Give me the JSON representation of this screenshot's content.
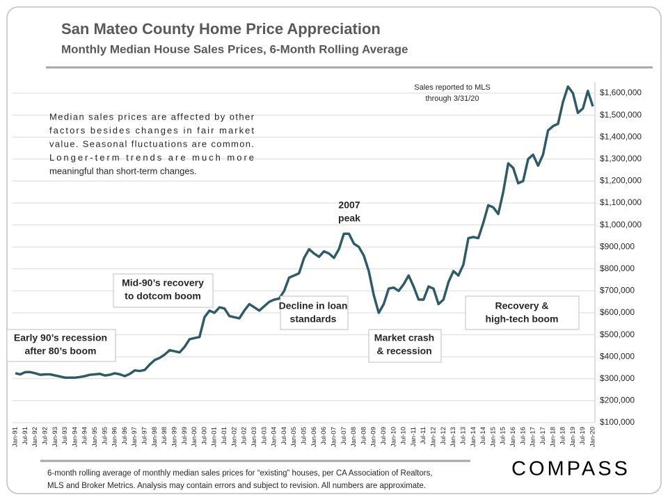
{
  "chart_data": {
    "type": "line",
    "title": "San Mateo County Home Price Appreciation",
    "subtitle": "Monthly Median House Sales Prices, 6-Month Rolling Average",
    "categories": [
      "Jan-91",
      null,
      "Jul-91",
      null,
      "Jan-92",
      null,
      "Jul-92",
      null,
      "Jan-93",
      null,
      "Jul-93",
      null,
      "Jan-94",
      null,
      "Jul-94",
      null,
      "Jan-95",
      null,
      "Jul-95",
      null,
      "Jan-96",
      null,
      "Jul-96",
      null,
      "Jan-97",
      null,
      "Jul-97",
      null,
      "Jan-98",
      null,
      "Jul-98",
      null,
      "Jan-99",
      null,
      "Jul-99",
      null,
      "Jan-00",
      null,
      "Jul-00",
      null,
      "Jan-01",
      null,
      "Jul-01",
      null,
      "Jan-02",
      null,
      "Jul-02",
      null,
      "Jan-03",
      null,
      "Jul-03",
      null,
      "Jan-04",
      null,
      "Jul-04",
      null,
      "Jan-05",
      null,
      "Jul-05",
      null,
      "Jan-06",
      null,
      "Jul-06",
      null,
      "Jan-07",
      null,
      "Jul-07",
      null,
      "Jan-08",
      null,
      "Jul-08",
      null,
      "Jan-09",
      null,
      "Jul-09",
      null,
      "Jan-10",
      null,
      "Jul-10",
      null,
      "Jan-11",
      null,
      "Jul-11",
      null,
      "Jan-12",
      null,
      "Jul-12",
      null,
      "Jan-13",
      null,
      "Jul-13",
      null,
      "Jan-14",
      null,
      "Jul-14",
      null,
      "Jan-15",
      null,
      "Jul-15",
      null,
      "Jan-16",
      null,
      "Jul-16",
      null,
      "Jan-17",
      null,
      "Jul-17",
      null,
      "Jan-18",
      null,
      "Jul-18",
      null,
      "Jan-19",
      null,
      "Jul-19",
      null,
      "Jan-20"
    ],
    "values": [
      325000,
      320000,
      330000,
      330000,
      325000,
      318000,
      320000,
      320000,
      315000,
      310000,
      305000,
      305000,
      305000,
      308000,
      312000,
      318000,
      320000,
      322000,
      315000,
      318000,
      325000,
      320000,
      312000,
      322000,
      338000,
      335000,
      340000,
      365000,
      385000,
      395000,
      410000,
      430000,
      425000,
      420000,
      445000,
      480000,
      485000,
      490000,
      580000,
      610000,
      600000,
      625000,
      620000,
      585000,
      580000,
      575000,
      610000,
      640000,
      625000,
      610000,
      630000,
      650000,
      660000,
      665000,
      700000,
      760000,
      770000,
      780000,
      850000,
      890000,
      870000,
      855000,
      880000,
      870000,
      850000,
      890000,
      960000,
      960000,
      915000,
      900000,
      860000,
      790000,
      680000,
      600000,
      640000,
      710000,
      715000,
      700000,
      730000,
      770000,
      720000,
      660000,
      660000,
      720000,
      710000,
      640000,
      660000,
      740000,
      790000,
      770000,
      820000,
      940000,
      945000,
      940000,
      1010000,
      1090000,
      1080000,
      1050000,
      1150000,
      1280000,
      1260000,
      1190000,
      1200000,
      1300000,
      1320000,
      1270000,
      1320000,
      1430000,
      1450000,
      1460000,
      1560000,
      1630000,
      1600000,
      1510000,
      1530000,
      1610000,
      1540000
    ],
    "color": "#2d5b67",
    "ylim": [
      100000,
      1600000
    ],
    "yticks": [
      {
        "value": 100000,
        "label": "$100,000"
      },
      {
        "value": 200000,
        "label": "$200,000"
      },
      {
        "value": 300000,
        "label": "$300,000"
      },
      {
        "value": 400000,
        "label": "$400,000"
      },
      {
        "value": 500000,
        "label": "$500,000"
      },
      {
        "value": 600000,
        "label": "$600,000"
      },
      {
        "value": 700000,
        "label": "$700,000"
      },
      {
        "value": 800000,
        "label": "$800,000"
      },
      {
        "value": 900000,
        "label": "$900,000"
      },
      {
        "value": 1000000,
        "label": "$1,000,000"
      },
      {
        "value": 1100000,
        "label": "$1,100,000"
      },
      {
        "value": 1200000,
        "label": "$1,200,000"
      },
      {
        "value": 1300000,
        "label": "$1,300,000"
      },
      {
        "value": 1400000,
        "label": "$1,400,000"
      },
      {
        "value": 1500000,
        "label": "$1,500,000"
      },
      {
        "value": 1600000,
        "label": "$1,600,000"
      }
    ],
    "grid": true,
    "annotations": [
      [
        "Early 90’s recession",
        "after 80’s boom"
      ],
      [
        "Mid-90’s recovery",
        "to dotcom boom"
      ],
      [
        "Decline in loan",
        "standards"
      ],
      [
        "Market crash",
        "& recession"
      ],
      [
        "Recovery &",
        "high-tech boom"
      ],
      [
        "2007",
        "peak"
      ],
      [
        "Sales reported to MLS",
        "through 3/31/20"
      ]
    ],
    "note": [
      "Median sales prices are affected by other",
      "factors besides changes in fair market",
      "value. Seasonal fluctuations are common.",
      "Longer-term trends are much more",
      "meaningful than short-term changes."
    ],
    "footnote": [
      "6-month rolling average of monthly median sales prices for “existing” houses, per CA Association of Realtors,",
      "MLS and Broker Metrics.  Analysis may contain errors and subject to revision. All numbers are approximate."
    ],
    "logo": "COMPASS"
  }
}
